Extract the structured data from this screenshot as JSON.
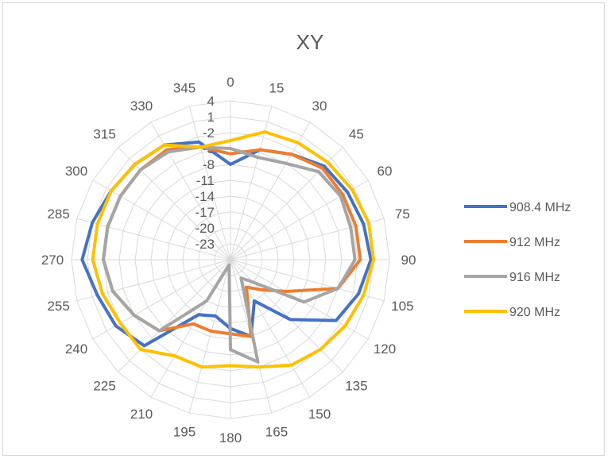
{
  "chart_data": {
    "type": "radar",
    "title": "XY",
    "angle_labels": [
      "0",
      "15",
      "30",
      "45",
      "60",
      "75",
      "90",
      "105",
      "120",
      "135",
      "150",
      "165",
      "180",
      "195",
      "210",
      "225",
      "240",
      "255",
      "270",
      "285",
      "300",
      "315",
      "330",
      "345"
    ],
    "radial_ticks": [
      "4",
      "1",
      "-2",
      "-5",
      "-8",
      "-11",
      "-14",
      "-17",
      "-20",
      "-23"
    ],
    "rlim": [
      -26,
      4
    ],
    "grid": true,
    "legend": "right",
    "series": [
      {
        "name": "908.4 MHz",
        "color": "#4472c4",
        "values": [
          -8,
          -4.5,
          -3,
          -1,
          -0.5,
          0,
          0.5,
          -1,
          -3,
          -10,
          -17,
          -11,
          -13,
          -15,
          -14,
          -3,
          -1,
          0,
          2,
          1,
          0,
          -0.5,
          -1,
          -3
        ]
      },
      {
        "name": "912 MHz",
        "color": "#ed7d31",
        "values": [
          -6,
          -4.5,
          -3,
          -1.5,
          -1.5,
          -1.5,
          -1.5,
          -5,
          -14,
          -18,
          -20,
          -11,
          -12,
          -12,
          -12,
          -7,
          -5,
          -3,
          -2,
          -2,
          -2,
          -2,
          -2,
          -4
        ]
      },
      {
        "name": "916 MHz",
        "color": "#a5a5a5",
        "values": [
          -5,
          -6,
          -5,
          -2.5,
          -2,
          -2.5,
          -2.5,
          -5,
          -10,
          -20,
          -22,
          -6,
          -9,
          -25,
          -17,
          -7,
          -5,
          -3,
          -2,
          -2,
          -2,
          -2,
          -2.5,
          -4
        ]
      },
      {
        "name": "920 MHz",
        "color": "#ffc000",
        "values": [
          -3.5,
          -1,
          -0.5,
          0,
          0.5,
          1,
          1,
          0,
          -1,
          -2,
          -3,
          -5,
          -6,
          -5,
          -5,
          -2,
          -2,
          -1,
          0,
          0,
          0,
          -0.5,
          -1,
          -4
        ]
      }
    ]
  }
}
